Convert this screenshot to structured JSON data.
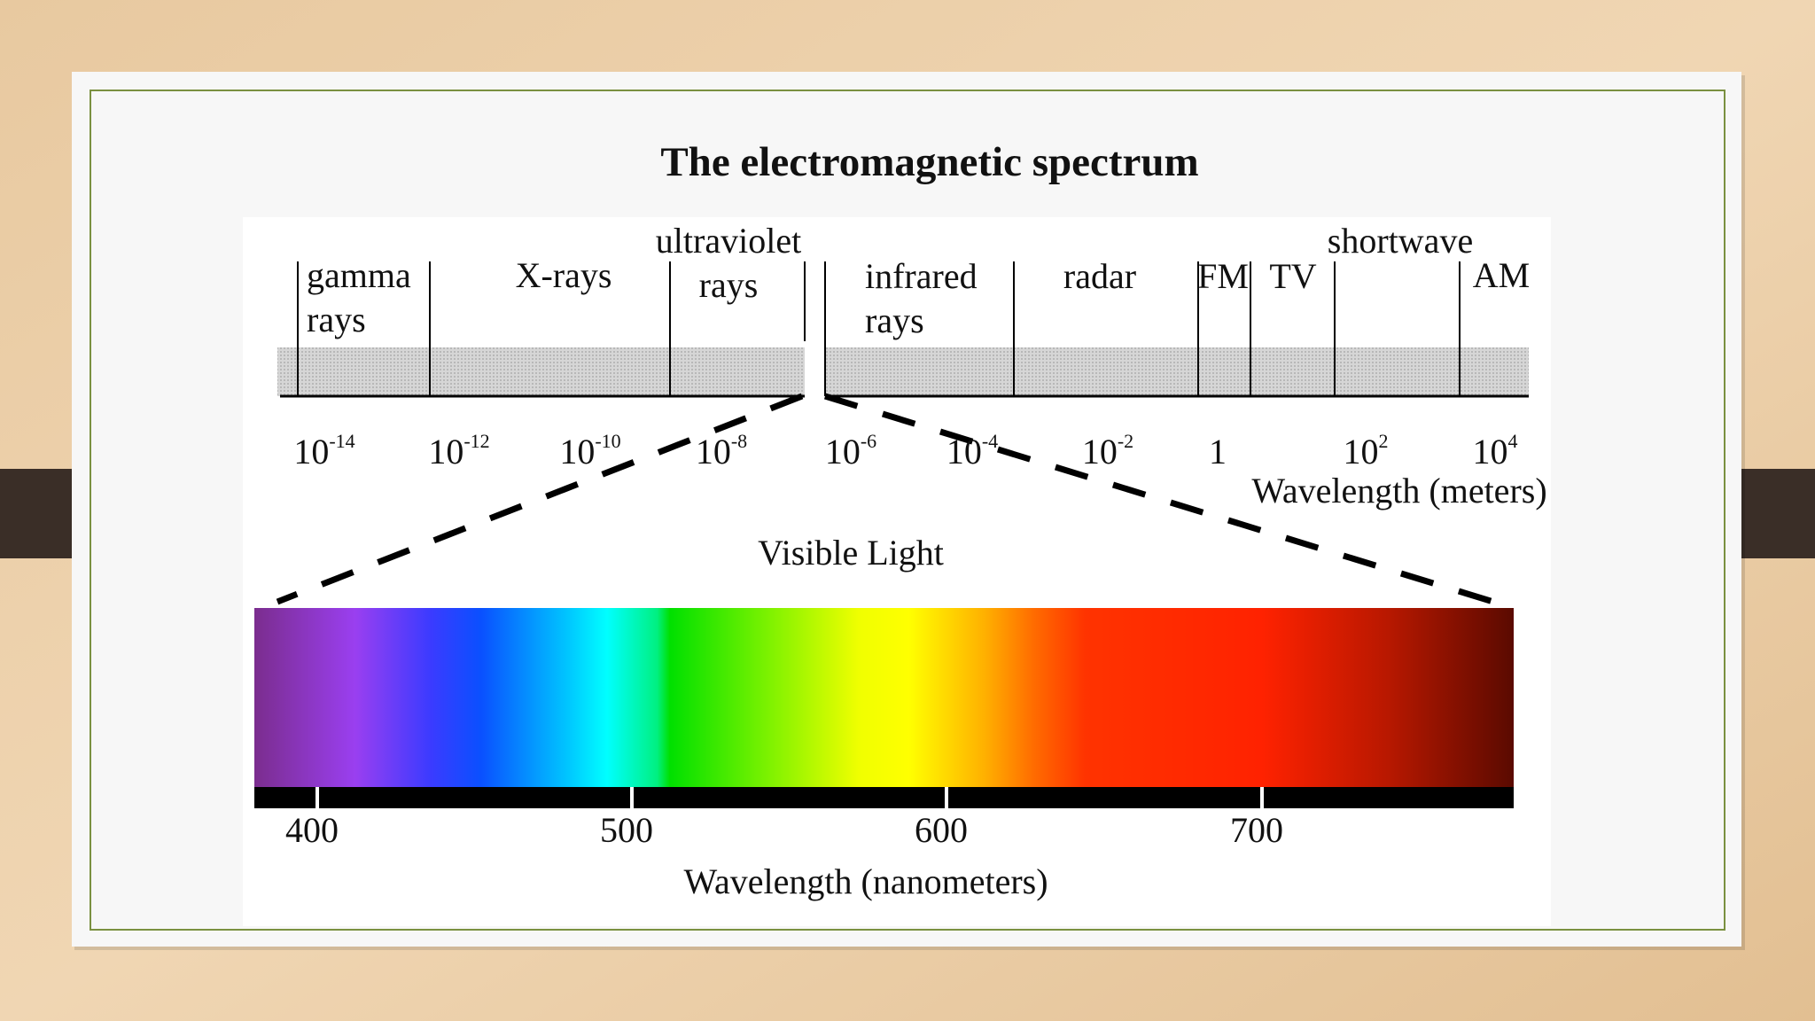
{
  "title": "The electromagnetic spectrum",
  "bands": [
    {
      "lines": [
        "gamma",
        "rays"
      ]
    },
    {
      "lines": [
        "X-rays"
      ]
    },
    {
      "lines": [
        "ultraviolet",
        "rays"
      ]
    },
    {
      "lines": [
        "infrared",
        "rays"
      ]
    },
    {
      "lines": [
        "radar"
      ]
    },
    {
      "lines": [
        "FM"
      ]
    },
    {
      "lines": [
        "TV"
      ]
    },
    {
      "lines": [
        "shortwave"
      ]
    },
    {
      "lines": [
        "AM"
      ]
    }
  ],
  "wavelength_ticks": [
    {
      "base": "10",
      "exp": "-14"
    },
    {
      "base": "10",
      "exp": "-12"
    },
    {
      "base": "10",
      "exp": "-10"
    },
    {
      "base": "10",
      "exp": "-8"
    },
    {
      "base": "10",
      "exp": "-6"
    },
    {
      "base": "10",
      "exp": "-4"
    },
    {
      "base": "10",
      "exp": "-2"
    },
    {
      "base": "1"
    },
    {
      "base": "10",
      "exp": "2"
    },
    {
      "base": "10",
      "exp": "4"
    }
  ],
  "wavelength_axis_label": "Wavelength (meters)",
  "visible_light": {
    "title": "Visible Light",
    "ticks": [
      "400",
      "500",
      "600",
      "700"
    ],
    "axis_label": "Wavelength (nanometers)"
  }
}
